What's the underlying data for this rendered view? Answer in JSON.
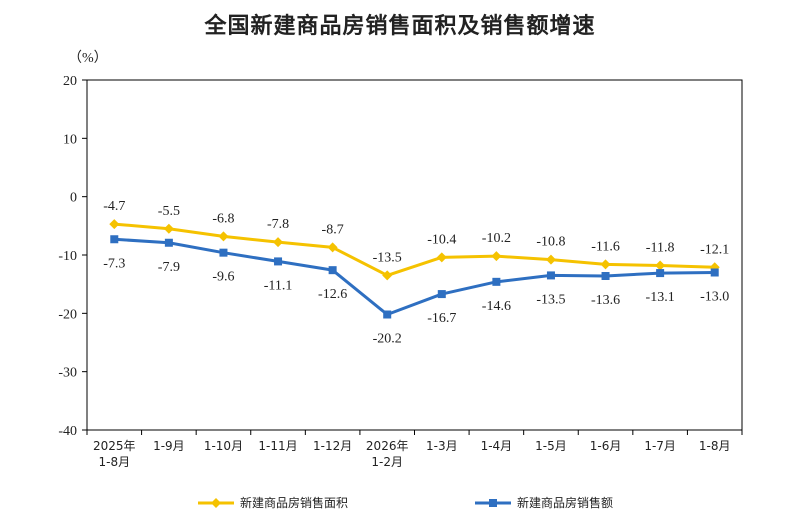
{
  "chart_data": {
    "type": "line",
    "title": "全国新建商品房销售面积及销售额增速",
    "unit_label": "（%）",
    "categories": [
      [
        "2025年",
        "1-8月"
      ],
      [
        "1-9月"
      ],
      [
        "1-10月"
      ],
      [
        "1-11月"
      ],
      [
        "1-12月"
      ],
      [
        "2026年",
        "1-2月"
      ],
      [
        "1-3月"
      ],
      [
        "1-4月"
      ],
      [
        "1-5月"
      ],
      [
        "1-6月"
      ],
      [
        "1-7月"
      ],
      [
        "1-8月"
      ]
    ],
    "ylim": [
      -40,
      20
    ],
    "yticks": [
      "20",
      "10",
      "0",
      "-10",
      "-20",
      "-30",
      "-40"
    ],
    "grid": false,
    "legend_position": "bottom",
    "series": [
      {
        "name": "新建商品房销售面积",
        "color": "#F5C200",
        "values": [
          -4.7,
          -5.5,
          -6.8,
          -7.8,
          -8.7,
          -13.5,
          -10.4,
          -10.2,
          -10.8,
          -11.6,
          -11.8,
          -12.1
        ],
        "labels": [
          "-4.7",
          "-5.5",
          "-6.8",
          "-7.8",
          "-8.7",
          "-13.5",
          "-10.4",
          "-10.2",
          "-10.8",
          "-11.6",
          "-11.8",
          "-12.1"
        ]
      },
      {
        "name": "新建商品房销售额",
        "color": "#2E6FC1",
        "values": [
          -7.3,
          -7.9,
          -9.6,
          -11.1,
          -12.6,
          -20.2,
          -16.7,
          -14.6,
          -13.5,
          -13.6,
          -13.1,
          -13.0
        ],
        "labels": [
          "-7.3",
          "-7.9",
          "-9.6",
          "-11.1",
          "-12.6",
          "-20.2",
          "-16.7",
          "-14.6",
          "-13.5",
          "-13.6",
          "-13.1",
          "-13.0"
        ]
      }
    ]
  }
}
